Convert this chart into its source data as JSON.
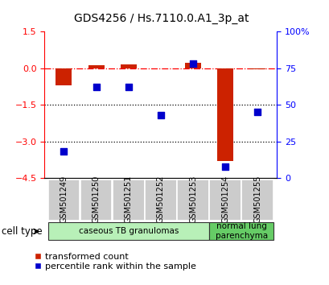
{
  "title": "GDS4256 / Hs.7110.0.A1_3p_at",
  "samples": [
    "GSM501249",
    "GSM501250",
    "GSM501251",
    "GSM501252",
    "GSM501253",
    "GSM501254",
    "GSM501255"
  ],
  "red_values": [
    -0.7,
    0.1,
    0.15,
    -0.03,
    0.2,
    -3.8,
    -0.05
  ],
  "blue_values": [
    18,
    62,
    62,
    43,
    78,
    8,
    45
  ],
  "left_ylim": [
    -4.5,
    1.5
  ],
  "left_yticks": [
    1.5,
    0,
    -1.5,
    -3,
    -4.5
  ],
  "right_yticks": [
    0,
    25,
    50,
    75,
    100
  ],
  "right_ylim": [
    0,
    100
  ],
  "dotted_lines": [
    -1.5,
    -3
  ],
  "cell_types": [
    {
      "label": "caseous TB granulomas",
      "samples_range": [
        0,
        4
      ],
      "color": "#b8f0b8"
    },
    {
      "label": "normal lung\nparenchyma",
      "samples_range": [
        5,
        6
      ],
      "color": "#66cc66"
    }
  ],
  "cell_type_label": "cell type",
  "legend_red": "transformed count",
  "legend_blue": "percentile rank within the sample",
  "bar_color": "#cc2200",
  "dot_color": "#0000cc",
  "bar_width": 0.5,
  "dot_size": 40,
  "title_fontsize": 10,
  "tick_fontsize": 8,
  "sample_fontsize": 7,
  "legend_fontsize": 8
}
